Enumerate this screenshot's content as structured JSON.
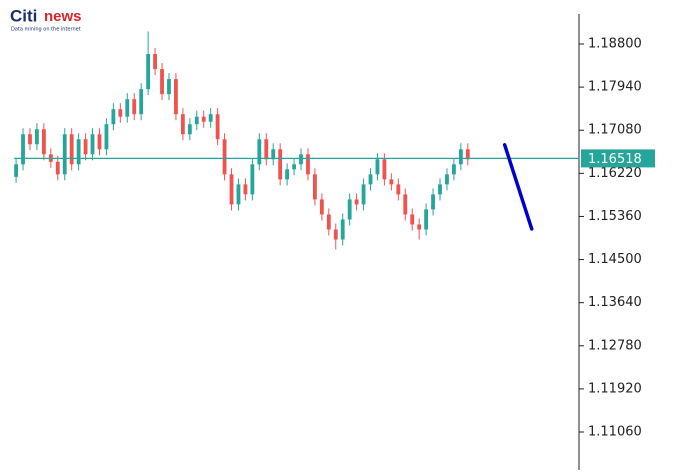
{
  "chart_data": {
    "type": "candlestick",
    "logo_parts": [
      "Citi",
      "news"
    ],
    "logo_tagline": "Data mining on the internet",
    "up_color": "#26a69a",
    "down_color": "#ef5350",
    "open": [
      1.1615,
      1.164,
      1.17,
      1.168,
      1.171,
      1.166,
      1.1645,
      1.162,
      1.17,
      1.164,
      1.169,
      1.166,
      1.17,
      1.167,
      1.172,
      1.175,
      1.1735,
      1.177,
      1.174,
      1.179,
      1.186,
      1.183,
      1.178,
      1.181,
      1.174,
      1.17,
      1.172,
      1.1735,
      1.1725,
      1.174,
      1.169,
      1.162,
      1.156,
      1.16,
      1.158,
      1.164,
      1.169,
      1.165,
      1.167,
      1.161,
      1.163,
      1.164,
      1.166,
      1.162,
      1.157,
      1.154,
      1.151,
      1.149,
      1.153,
      1.157,
      1.156,
      1.16,
      1.162,
      1.165,
      1.161,
      1.16,
      1.158,
      1.154,
      1.152,
      1.151,
      1.155,
      1.158,
      1.16,
      1.162,
      1.164,
      1.167
    ],
    "high": [
      1.1652,
      1.1712,
      1.1712,
      1.1722,
      1.1722,
      1.1672,
      1.1657,
      1.1712,
      1.1712,
      1.1702,
      1.1702,
      1.1712,
      1.1712,
      1.1732,
      1.1762,
      1.1762,
      1.1782,
      1.1782,
      1.1802,
      1.1905,
      1.1872,
      1.1842,
      1.1822,
      1.1822,
      1.1752,
      1.1732,
      1.1747,
      1.1747,
      1.1752,
      1.1752,
      1.1702,
      1.1632,
      1.1612,
      1.1612,
      1.1652,
      1.1702,
      1.1702,
      1.1682,
      1.1682,
      1.1642,
      1.1652,
      1.1672,
      1.1672,
      1.1632,
      1.1582,
      1.1552,
      1.1522,
      1.1542,
      1.1582,
      1.1582,
      1.1612,
      1.1632,
      1.1662,
      1.1662,
      1.1622,
      1.1612,
      1.1592,
      1.1552,
      1.1532,
      1.1562,
      1.1592,
      1.1612,
      1.1632,
      1.1652,
      1.1682,
      1.1682
    ],
    "low": [
      1.1603,
      1.1628,
      1.1668,
      1.1668,
      1.1648,
      1.1633,
      1.1608,
      1.1608,
      1.1628,
      1.1628,
      1.1648,
      1.1648,
      1.1658,
      1.1658,
      1.1708,
      1.1723,
      1.1723,
      1.1728,
      1.1728,
      1.1778,
      1.1818,
      1.1768,
      1.1768,
      1.1728,
      1.1688,
      1.1688,
      1.1708,
      1.1713,
      1.1713,
      1.1678,
      1.1608,
      1.1548,
      1.1548,
      1.1568,
      1.1568,
      1.1628,
      1.1638,
      1.1638,
      1.1598,
      1.1598,
      1.1618,
      1.1628,
      1.1608,
      1.1558,
      1.1528,
      1.1498,
      1.147,
      1.1478,
      1.1518,
      1.1548,
      1.1548,
      1.1588,
      1.1608,
      1.1598,
      1.1588,
      1.1568,
      1.1528,
      1.1508,
      1.149,
      1.1498,
      1.1538,
      1.1568,
      1.1588,
      1.1608,
      1.1628,
      1.1638
    ],
    "close": [
      1.164,
      1.17,
      1.168,
      1.171,
      1.166,
      1.1645,
      1.162,
      1.17,
      1.164,
      1.169,
      1.166,
      1.17,
      1.167,
      1.172,
      1.175,
      1.1735,
      1.177,
      1.174,
      1.179,
      1.186,
      1.183,
      1.178,
      1.181,
      1.174,
      1.17,
      1.172,
      1.1735,
      1.1725,
      1.174,
      1.169,
      1.162,
      1.156,
      1.16,
      1.158,
      1.164,
      1.169,
      1.165,
      1.167,
      1.161,
      1.163,
      1.164,
      1.166,
      1.162,
      1.157,
      1.154,
      1.151,
      1.149,
      1.153,
      1.157,
      1.156,
      1.16,
      1.162,
      1.165,
      1.161,
      1.16,
      1.158,
      1.154,
      1.152,
      1.151,
      1.155,
      1.158,
      1.16,
      1.162,
      1.164,
      1.167,
      1.165
    ],
    "current_price": 1.16518,
    "current_price_color": "#26a69a",
    "projection": {
      "x": [
        70.3,
        74.2
      ],
      "values": [
        1.1679,
        1.1511
      ],
      "color": "#0000cc"
    },
    "xlim": [
      -0.3,
      81
    ],
    "ylim": [
      1.10302,
      1.19678
    ],
    "yticks": [
      {
        "value": 1.188,
        "label": "1.18800"
      },
      {
        "value": 1.1794,
        "label": "1.17940"
      },
      {
        "value": 1.1708,
        "label": "1.17080"
      },
      {
        "value": 1.1622,
        "label": "1.16220"
      },
      {
        "value": 1.1536,
        "label": "1.15360"
      },
      {
        "value": 1.145,
        "label": "1.14500"
      },
      {
        "value": 1.1364,
        "label": "1.13640"
      },
      {
        "value": 1.1278,
        "label": "1.12780"
      },
      {
        "value": 1.1192,
        "label": "1.11920"
      },
      {
        "value": 1.1106,
        "label": "1.11060"
      }
    ]
  }
}
